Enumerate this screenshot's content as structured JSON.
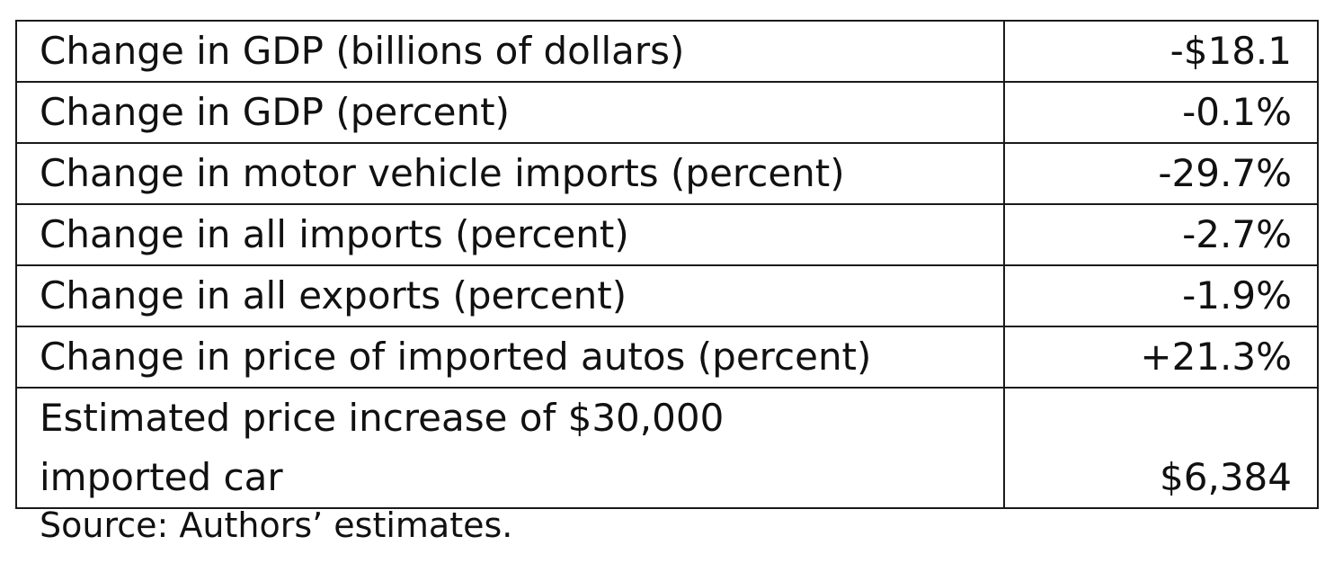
{
  "table": {
    "rows": [
      {
        "label": "Change in GDP (billions of dollars)",
        "value": "-$18.1"
      },
      {
        "label": "Change in GDP (percent)",
        "value": "-0.1%"
      },
      {
        "label": "Change in motor vehicle imports (percent)",
        "value": "-29.7%"
      },
      {
        "label": "Change in all imports (percent)",
        "value": "-2.7%"
      },
      {
        "label": "Change in all exports (percent)",
        "value": "-1.9%"
      },
      {
        "label": "Change in price of imported autos (percent)",
        "value": "+21.3%"
      },
      {
        "label": "Estimated price increase of $30,000\nimported car",
        "value": "$6,384"
      }
    ]
  },
  "source_note": "Source: Authors’ estimates."
}
